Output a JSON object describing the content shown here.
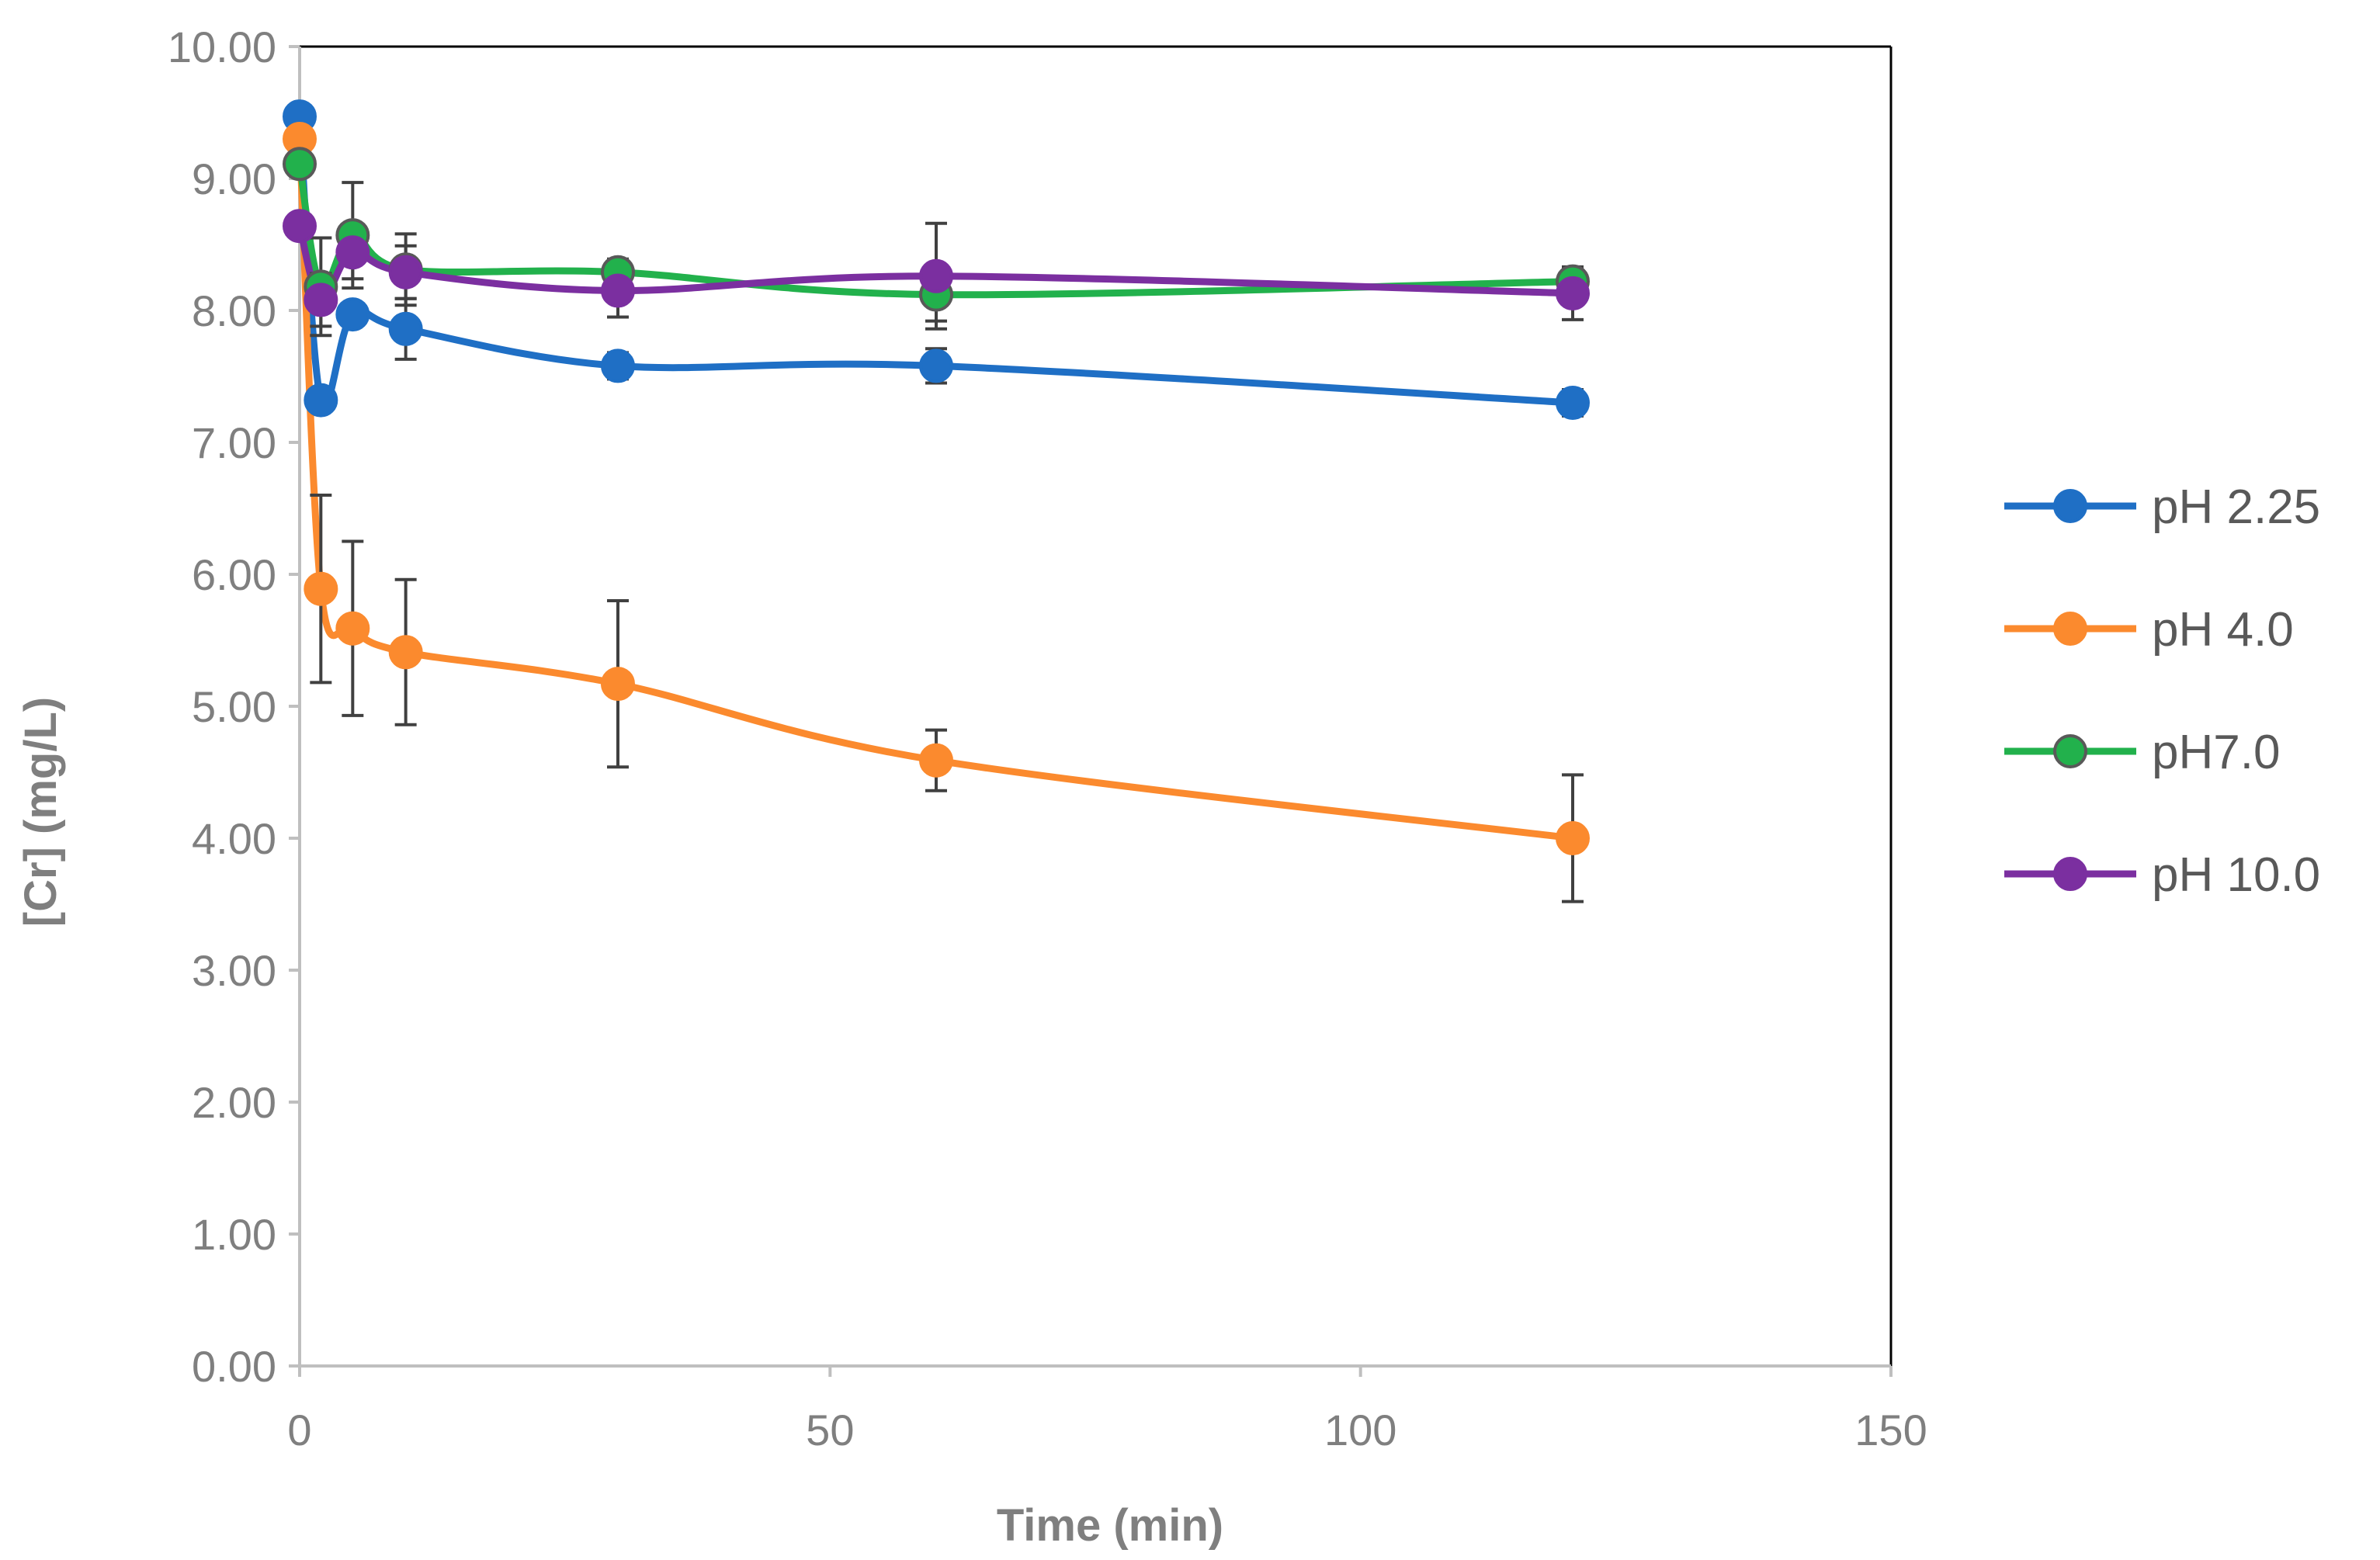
{
  "chart_data": {
    "type": "line",
    "title": "",
    "xlabel": "Time (min)",
    "ylabel": "[Cr] (mg/L)",
    "xlim": [
      0,
      150
    ],
    "ylim": [
      0,
      10
    ],
    "x_ticks": [
      "0",
      "50",
      "100",
      "150"
    ],
    "y_ticks": [
      "0.00",
      "1.00",
      "2.00",
      "3.00",
      "4.00",
      "5.00",
      "6.00",
      "7.00",
      "8.00",
      "9.00",
      "10.00"
    ],
    "grid": false,
    "legend_position": "right",
    "x": [
      0,
      2,
      5,
      10,
      30,
      60,
      120
    ],
    "series": [
      {
        "name": "pH 2.25",
        "color": "#1f6fc5",
        "marker_edge": "#1f6fc5",
        "values": [
          9.47,
          7.32,
          7.97,
          7.86,
          7.58,
          7.58,
          7.3
        ],
        "errors": [
          0.0,
          0.0,
          0.0,
          0.23,
          0.1,
          0.13,
          0.1
        ]
      },
      {
        "name": "pH 4.0",
        "color": "#fb8a2e",
        "marker_edge": "#fb8a2e",
        "values": [
          9.3,
          5.89,
          5.59,
          5.41,
          5.17,
          4.59,
          4.0
        ],
        "errors": [
          0.0,
          0.71,
          0.66,
          0.55,
          0.63,
          0.23,
          0.48
        ]
      },
      {
        "name": "pH7.0",
        "color": "#22b14c",
        "marker_edge": "#595959",
        "values": [
          9.11,
          8.18,
          8.57,
          8.31,
          8.29,
          8.12,
          8.22
        ],
        "errors": [
          0.0,
          0.37,
          0.4,
          0.27,
          0.1,
          0.2,
          0.1
        ]
      },
      {
        "name": "pH 10.0",
        "color": "#7b2fa0",
        "marker_edge": "#7b2fa0",
        "values": [
          8.64,
          8.08,
          8.44,
          8.29,
          8.15,
          8.26,
          8.13
        ],
        "errors": [
          0.0,
          0.2,
          0.2,
          0.2,
          0.2,
          0.4,
          0.2
        ]
      }
    ]
  }
}
